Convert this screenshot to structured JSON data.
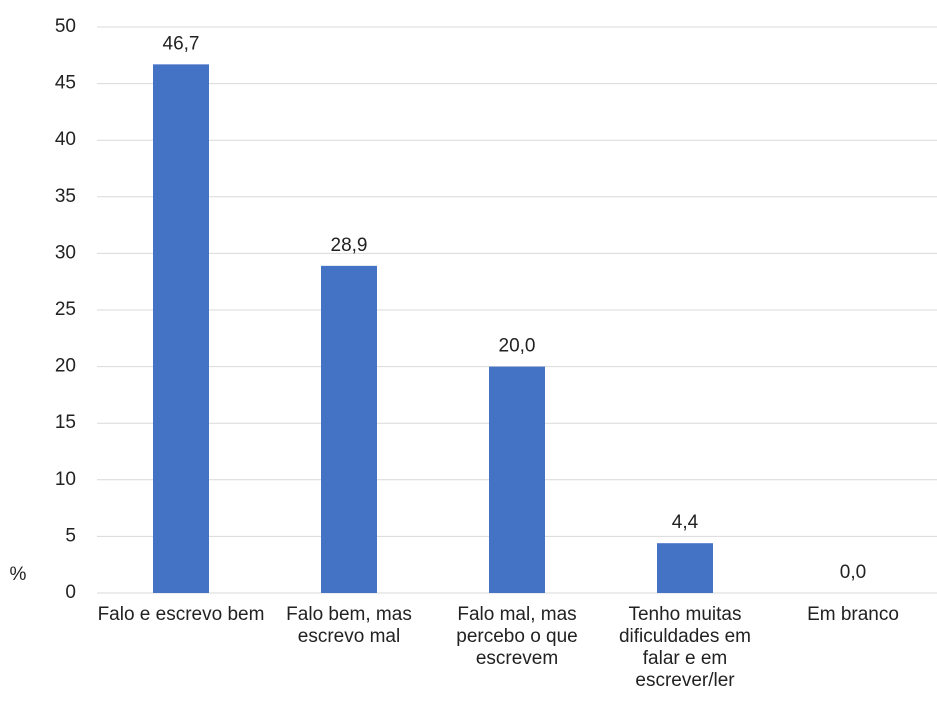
{
  "chart_data": {
    "type": "bar",
    "y_label": "%",
    "categories": [
      "Falo e escrevo bem",
      "Falo bem, mas escrevo mal",
      "Falo mal, mas percebo o que escrevem",
      "Tenho muitas dificuldades em falar e em escrever/ler",
      "Em branco"
    ],
    "values": [
      46.7,
      28.9,
      20.0,
      4.4,
      0.0
    ],
    "value_labels": [
      "46,7",
      "28,9",
      "20,0",
      "4,4",
      "0,0"
    ],
    "color": "#4472c4",
    "ylim": [
      0,
      50
    ],
    "yticks": [
      0,
      5,
      10,
      15,
      20,
      25,
      30,
      35,
      40,
      45,
      50
    ],
    "grid": true
  }
}
